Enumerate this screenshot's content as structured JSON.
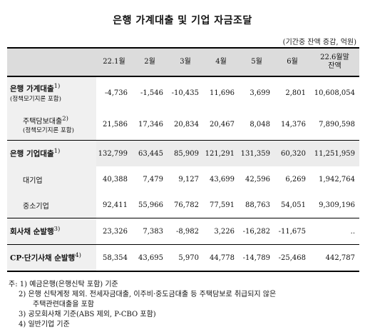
{
  "title": "은행 가계대출 및 기업 자금조달",
  "unit": "(기간중 잔액 증감, 억원)",
  "headers": [
    "",
    "22.1월",
    "2월",
    "3월",
    "4월",
    "5월",
    "6월",
    "22.6월말",
    "잔액"
  ],
  "rows": [
    {
      "label": "은행 가계대출",
      "fn": "1)",
      "sub": "(정책모기지론 포함)",
      "values": [
        "-4,736",
        "-1,546",
        "-10,435",
        "11,696",
        "3,699",
        "2,801",
        "10,608,054"
      ]
    },
    {
      "label": "주택담보대출",
      "fn": "2)",
      "sub": "(정책모기지론 포함)",
      "values": [
        "21,586",
        "17,346",
        "20,834",
        "20,467",
        "8,048",
        "14,376",
        "7,890,598"
      ]
    },
    {
      "label": "은행 기업대출",
      "fn": "1)",
      "values": [
        "132,799",
        "63,445",
        "85,909",
        "121,291",
        "131,359",
        "60,320",
        "11,251,959"
      ]
    },
    {
      "label": "대기업",
      "values": [
        "40,388",
        "7,479",
        "9,127",
        "43,699",
        "42,596",
        "6,269",
        "1,942,764"
      ]
    },
    {
      "label": "중소기업",
      "values": [
        "92,411",
        "55,966",
        "76,782",
        "77,591",
        "88,763",
        "54,051",
        "9,309,196"
      ]
    },
    {
      "label": "회사채 순발행",
      "fn": "3)",
      "values": [
        "23,326",
        "7,383",
        "-8,982",
        "3,226",
        "-16,282",
        "-11,675",
        ".."
      ]
    },
    {
      "label": "CP·단기사채 순발행",
      "fn": "4)",
      "values": [
        "58,354",
        "43,695",
        "5,970",
        "44,778",
        "-14,789",
        "-25,468",
        "442,787"
      ]
    }
  ],
  "notes": [
    "주: 1) 예금은행(은행신탁 포함) 기준",
    "2) 은행 신탁계정 제외. 전세자금대출, 이주비·중도금대출 등 주택담보로 취급되지 않은",
    "주택관련대출을 포함",
    "3) 공모회사채 기준(ABS 제외, P-CBO 포함)",
    "4) 일반기업 기준"
  ]
}
